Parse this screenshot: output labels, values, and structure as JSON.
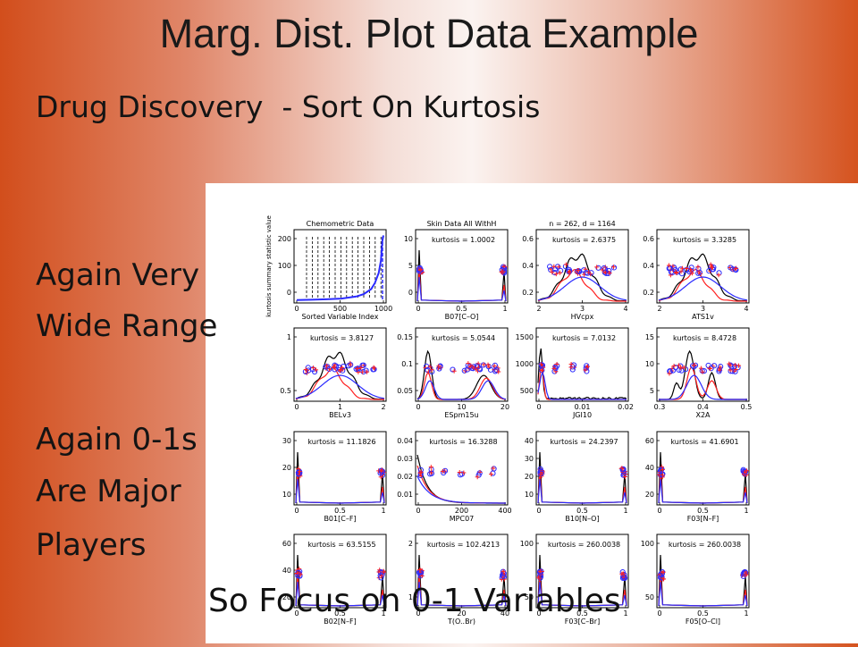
{
  "slide": {
    "title": "Marg. Dist. Plot Data Example",
    "subtitle": "Drug Discovery  - Sort On Kurtosis",
    "bullets": [
      "Again Very",
      "Wide Range",
      "Again 0-1s",
      "Are Major",
      "Players"
    ],
    "callout": "So Focus on 0-1 Variables"
  },
  "colors": {
    "black": "#000000",
    "red": "#ff2020",
    "blue": "#2b2bff"
  },
  "chart_data": [
    {
      "type": "line",
      "title": "Chemometric Data",
      "xlabel": "Sorted Variable Index",
      "ylabel": "kurtosis summary statistic value",
      "xticks": [
        "0",
        "500",
        "1000"
      ],
      "yticks": [
        "0",
        "100",
        "200"
      ],
      "xlim": [
        0,
        1164
      ],
      "ylim": [
        0,
        260
      ],
      "series": [
        {
          "values": [
            [
              0,
              1
            ],
            [
              200,
              2
            ],
            [
              400,
              4
            ],
            [
              600,
              7
            ],
            [
              800,
              15
            ],
            [
              900,
              25
            ],
            [
              1000,
              45
            ],
            [
              1050,
              70
            ],
            [
              1100,
              110
            ],
            [
              1130,
              160
            ],
            [
              1150,
              240
            ],
            [
              1164,
              262
            ]
          ]
        }
      ]
    },
    {
      "type": "line",
      "title": "Skin Data All WithH",
      "xlabel": "B07[C–O]",
      "annotation": "kurtosis = 1.0002",
      "xticks": [
        "0",
        "0.5",
        "1"
      ],
      "yticks": [
        "0",
        "5",
        "10"
      ],
      "xlim": [
        0,
        1
      ],
      "ylim": [
        0,
        10
      ],
      "shape": "spikes"
    },
    {
      "type": "line",
      "title": "n = 262, d = 1164",
      "xlabel": "HVcpx",
      "annotation": "kurtosis = 2.6375",
      "xticks": [
        "2",
        "3",
        "4"
      ],
      "yticks": [
        "0.2",
        "0.4",
        "0.6"
      ],
      "xlim": [
        1.5,
        4
      ],
      "ylim": [
        0,
        0.7
      ],
      "shape": "bell"
    },
    {
      "type": "line",
      "xlabel": "ATS1v",
      "annotation": "kurtosis = 3.3285",
      "xticks": [
        "2",
        "3",
        "4"
      ],
      "yticks": [
        "0.2",
        "0.4",
        "0.6"
      ],
      "xlim": [
        1.5,
        4
      ],
      "ylim": [
        0,
        0.7
      ],
      "shape": "bell"
    },
    {
      "type": "line",
      "xlabel": "BELv3",
      "annotation": "kurtosis = 3.8127",
      "xticks": [
        "0",
        "1",
        "2"
      ],
      "yticks": [
        "0.5",
        "1"
      ],
      "xlim": [
        0,
        2
      ],
      "ylim": [
        0,
        1.3
      ],
      "shape": "bell"
    },
    {
      "type": "line",
      "xlabel": "ESpm15u",
      "annotation": "kurtosis = 5.0544",
      "xticks": [
        "0",
        "10",
        "20"
      ],
      "yticks": [
        "0.05",
        "0.1",
        "0.15"
      ],
      "xlim": [
        0,
        22
      ],
      "ylim": [
        0,
        0.16
      ],
      "shape": "twin"
    },
    {
      "type": "line",
      "xlabel": "JGI10",
      "annotation": "kurtosis = 7.0132",
      "xticks": [
        "0",
        "0.01",
        "0.02"
      ],
      "yticks": [
        "500",
        "1000",
        "1500"
      ],
      "xlim": [
        0,
        0.02
      ],
      "ylim": [
        0,
        1600
      ],
      "shape": "leftpeak"
    },
    {
      "type": "line",
      "xlabel": "X2A",
      "annotation": "kurtosis = 8.4728",
      "xticks": [
        "0.3",
        "0.4",
        "0.5"
      ],
      "yticks": [
        "5",
        "10",
        "15"
      ],
      "xlim": [
        0.25,
        0.55
      ],
      "ylim": [
        0,
        16
      ],
      "shape": "multi"
    },
    {
      "type": "line",
      "xlabel": "B01[C–F]",
      "annotation": "kurtosis = 11.1826",
      "xticks": [
        "0",
        "0.5",
        "1"
      ],
      "yticks": [
        "10",
        "20",
        "30"
      ],
      "xlim": [
        0,
        1
      ],
      "ylim": [
        0,
        32
      ],
      "shape": "spikes"
    },
    {
      "type": "line",
      "xlabel": "MPC07",
      "annotation": "kurtosis = 16.3288",
      "xticks": [
        "0",
        "200",
        "400"
      ],
      "yticks": [
        "0.01",
        "0.02",
        "0.03",
        "0.04"
      ],
      "xlim": [
        0,
        450
      ],
      "ylim": [
        0,
        0.04
      ],
      "shape": "decay"
    },
    {
      "type": "line",
      "xlabel": "B10[N–O]",
      "annotation": "kurtosis = 24.2397",
      "xticks": [
        "0",
        "0.5",
        "1"
      ],
      "yticks": [
        "10",
        "20",
        "30",
        "40"
      ],
      "xlim": [
        0,
        1
      ],
      "ylim": [
        0,
        45
      ],
      "shape": "spikes"
    },
    {
      "type": "line",
      "xlabel": "F03[N–F]",
      "annotation": "kurtosis = 41.6901",
      "xticks": [
        "0",
        "0.5",
        "1"
      ],
      "yticks": [
        "20",
        "40",
        "60"
      ],
      "xlim": [
        0,
        1
      ],
      "ylim": [
        0,
        70
      ],
      "shape": "spikes"
    },
    {
      "type": "line",
      "xlabel": "B02[N–F]",
      "annotation": "kurtosis = 63.5155",
      "xticks": [
        "0",
        "0.5",
        "1"
      ],
      "yticks": [
        "20",
        "40",
        "60"
      ],
      "xlim": [
        0,
        1
      ],
      "ylim": [
        0,
        70
      ],
      "shape": "spikes"
    },
    {
      "type": "line",
      "xlabel": "T(O..Br)",
      "annotation": "kurtosis = 102.4213",
      "xticks": [
        "0",
        "20",
        "40"
      ],
      "yticks": [
        "1",
        "2"
      ],
      "xlim": [
        0,
        45
      ],
      "ylim": [
        0,
        2.2
      ],
      "shape": "spikes"
    },
    {
      "type": "line",
      "xlabel": "F03[C–Br]",
      "annotation": "kurtosis = 260.0038",
      "xticks": [
        "0",
        "0.5",
        "1"
      ],
      "yticks": [
        "50",
        "100"
      ],
      "xlim": [
        0,
        1
      ],
      "ylim": [
        0,
        120
      ],
      "shape": "spikes"
    },
    {
      "type": "line",
      "xlabel": "F05[O–Cl]",
      "annotation": "kurtosis = 260.0038",
      "xticks": [
        "0",
        "0.5",
        "1"
      ],
      "yticks": [
        "50",
        "100"
      ],
      "xlim": [
        0,
        1
      ],
      "ylim": [
        0,
        120
      ],
      "shape": "spikes"
    }
  ]
}
